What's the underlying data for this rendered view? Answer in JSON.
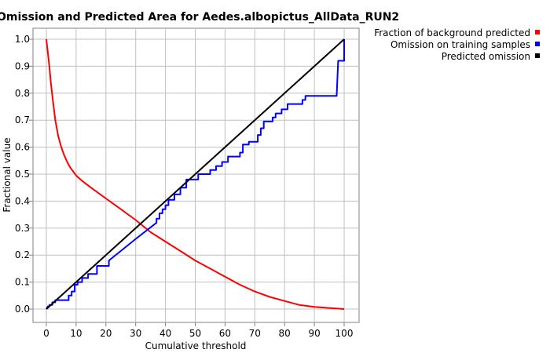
{
  "chart_data": {
    "type": "line",
    "title": "Omission and Predicted Area for Aedes.albopictus_AllData_RUN2",
    "xlabel": "Cumulative threshold",
    "ylabel": "Fractional value",
    "xlim": [
      0,
      100
    ],
    "ylim": [
      0,
      1
    ],
    "x_ticks": [
      0,
      10,
      20,
      30,
      40,
      50,
      60,
      70,
      80,
      90,
      100
    ],
    "y_ticks": [
      0.0,
      0.1,
      0.2,
      0.3,
      0.4,
      0.5,
      0.6,
      0.7,
      0.8,
      0.9,
      1.0
    ],
    "x_tick_labels": [
      "0",
      "10",
      "20",
      "30",
      "40",
      "50",
      "60",
      "70",
      "80",
      "90",
      "100"
    ],
    "y_tick_labels": [
      "0.0",
      "0.1",
      "0.2",
      "0.3",
      "0.4",
      "0.5",
      "0.6",
      "0.7",
      "0.8",
      "0.9",
      "1.0"
    ],
    "grid": true,
    "legend_position": "top-right",
    "series": [
      {
        "name": "Fraction of background predicted",
        "color": "#ff0000",
        "x": [
          0,
          0.5,
          1,
          1.5,
          2,
          3,
          4,
          5,
          6,
          7,
          8,
          10,
          12,
          15,
          20,
          25,
          30,
          35,
          40,
          45,
          50,
          55,
          60,
          65,
          70,
          75,
          80,
          85,
          90,
          95,
          100
        ],
        "y": [
          1.0,
          0.95,
          0.9,
          0.84,
          0.79,
          0.7,
          0.64,
          0.6,
          0.57,
          0.545,
          0.525,
          0.495,
          0.475,
          0.45,
          0.41,
          0.37,
          0.33,
          0.285,
          0.25,
          0.215,
          0.18,
          0.15,
          0.12,
          0.09,
          0.065,
          0.045,
          0.03,
          0.015,
          0.008,
          0.004,
          0.0
        ]
      },
      {
        "name": "Omission on training samples",
        "color": "#0000ff",
        "x": [
          0,
          0.5,
          1,
          1,
          2,
          2,
          3,
          3,
          7.5,
          7.5,
          8.5,
          8.5,
          9.5,
          9.5,
          10.5,
          10.5,
          12,
          12,
          14,
          14,
          17,
          17,
          21,
          21,
          30,
          37,
          37,
          38,
          38,
          39,
          39,
          40,
          40,
          41,
          41,
          43,
          43,
          45,
          45,
          47,
          47,
          51,
          51,
          55,
          55,
          57,
          57,
          59,
          59,
          61,
          61,
          65,
          65,
          66,
          66,
          68,
          68,
          71,
          71,
          72,
          72,
          73,
          73,
          76,
          76,
          77,
          77,
          79,
          79,
          81,
          81,
          86,
          86,
          87,
          87,
          97.5,
          98,
          98,
          100,
          100
        ],
        "y": [
          0.0,
          0.01,
          0.01,
          0.015,
          0.015,
          0.025,
          0.025,
          0.033,
          0.033,
          0.05,
          0.05,
          0.065,
          0.065,
          0.09,
          0.09,
          0.1,
          0.1,
          0.115,
          0.115,
          0.13,
          0.13,
          0.16,
          0.16,
          0.18,
          0.26,
          0.32,
          0.335,
          0.335,
          0.355,
          0.355,
          0.37,
          0.37,
          0.385,
          0.385,
          0.405,
          0.405,
          0.425,
          0.425,
          0.45,
          0.45,
          0.48,
          0.48,
          0.5,
          0.5,
          0.515,
          0.515,
          0.53,
          0.53,
          0.545,
          0.545,
          0.565,
          0.565,
          0.58,
          0.58,
          0.61,
          0.61,
          0.62,
          0.62,
          0.645,
          0.645,
          0.67,
          0.67,
          0.695,
          0.695,
          0.71,
          0.71,
          0.725,
          0.725,
          0.74,
          0.74,
          0.76,
          0.76,
          0.775,
          0.775,
          0.79,
          0.79,
          0.92,
          0.92,
          0.92,
          1.0
        ]
      },
      {
        "name": "Predicted omission",
        "color": "#000000",
        "x": [
          0,
          100
        ],
        "y": [
          0,
          1
        ]
      }
    ]
  }
}
